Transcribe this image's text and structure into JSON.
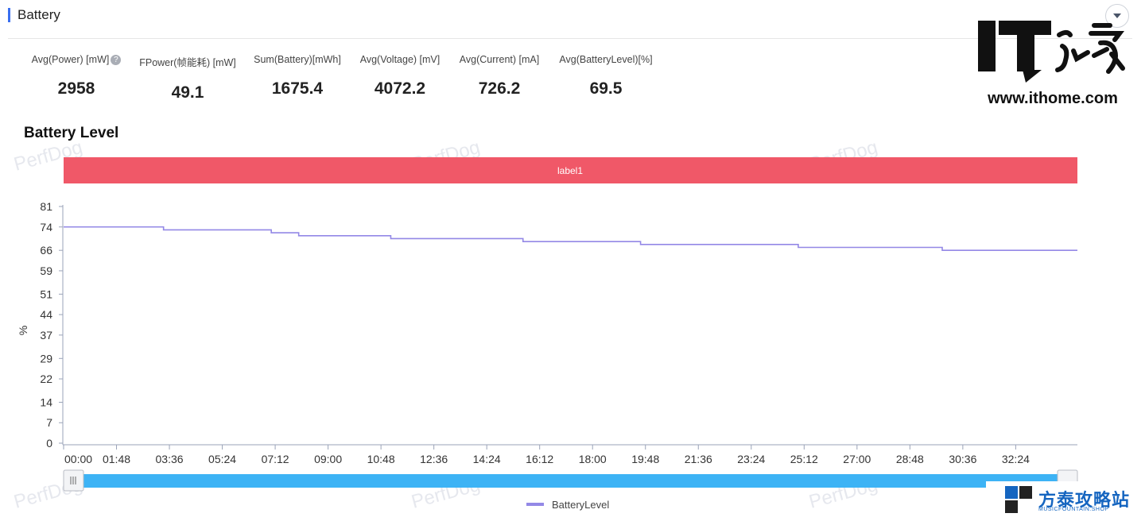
{
  "section": {
    "title": "Battery"
  },
  "stats": [
    {
      "label": "Avg(Power) [mW]",
      "value": "2958",
      "has_help": true
    },
    {
      "label": "FPower(帧能耗) [mW]",
      "value": "49.1"
    },
    {
      "label": "Sum(Battery)[mWh]",
      "value": "1675.4"
    },
    {
      "label": "Avg(Voltage) [mV]",
      "value": "4072.2"
    },
    {
      "label": "Avg(Current) [mA]",
      "value": "726.2"
    },
    {
      "label": "Avg(BatteryLevel)[%]",
      "value": "69.5"
    }
  ],
  "icons": {
    "help": "question-mark-icon",
    "collapse": "chevron-down-icon"
  },
  "logo": {
    "text": "IT之家",
    "url": "www.ithome.com"
  },
  "site_watermark": {
    "name": "方泰攻略站",
    "sub": "MUSICFOUNTAIN.SHOP"
  },
  "chart_watermark": "PerfDog",
  "chart_data": {
    "type": "line",
    "title": "Battery Level",
    "label_band": "label1",
    "ylabel": "%",
    "ylim": [
      0,
      81
    ],
    "yticks": [
      0,
      7,
      14,
      22,
      29,
      37,
      44,
      51,
      59,
      66,
      74,
      81
    ],
    "xlim": [
      "00:00",
      "34:30"
    ],
    "xticks": [
      "00:00",
      "01:48",
      "03:36",
      "05:24",
      "07:12",
      "09:00",
      "10:48",
      "12:36",
      "14:24",
      "16:12",
      "18:00",
      "19:48",
      "21:36",
      "23:24",
      "25:12",
      "27:00",
      "28:48",
      "30:36",
      "32:24"
    ],
    "legend": "bottom-center",
    "series": [
      {
        "name": "BatteryLevel",
        "color": "#9388e6",
        "step": true,
        "x": [
          "00:00",
          "03:24",
          "07:04",
          "08:00",
          "11:08",
          "15:38",
          "19:38",
          "25:00",
          "29:54",
          "34:30"
        ],
        "y": [
          74,
          73,
          72,
          71,
          70,
          69,
          68,
          67,
          66,
          66
        ]
      }
    ],
    "colors": {
      "band": "#f05868",
      "axis": "#9aa3b8",
      "slider": "#3db3f5"
    }
  }
}
